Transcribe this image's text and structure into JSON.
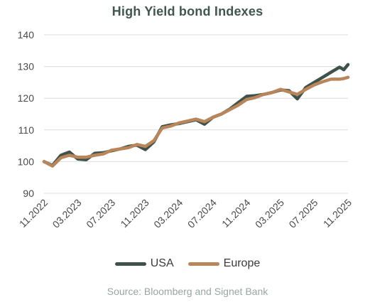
{
  "chart_data": {
    "type": "line",
    "title": "High Yield bond Indexes",
    "source": "Source: Bloomberg and Signet Bank",
    "ylim": [
      90,
      140
    ],
    "yticks": [
      90,
      100,
      110,
      120,
      130,
      140
    ],
    "xlim": [
      "2022-11",
      "2025-11"
    ],
    "xticks": [
      "11.2022",
      "03.2023",
      "07.2023",
      "11.2023",
      "03.2024",
      "07.2024",
      "11.2024",
      "03.2025",
      "07.2025",
      "11.2025"
    ],
    "grid": "horizontal",
    "legend_position": "bottom",
    "series": [
      {
        "name": "USA",
        "color": "#3f5249",
        "points": [
          [
            "2022-11",
            100
          ],
          [
            "2022-12",
            98.8
          ],
          [
            "2023-01",
            102
          ],
          [
            "2023-02",
            103
          ],
          [
            "2023-03",
            100.8
          ],
          [
            "2023-04",
            100.6
          ],
          [
            "2023-05",
            102.6
          ],
          [
            "2023-06",
            102.8
          ],
          [
            "2023-07",
            103.4
          ],
          [
            "2023-08",
            104
          ],
          [
            "2023-09",
            104.8
          ],
          [
            "2023-10",
            105.2
          ],
          [
            "2023-11",
            103.8
          ],
          [
            "2023-12",
            106.2
          ],
          [
            "2024-01",
            111
          ],
          [
            "2024-02",
            111.6
          ],
          [
            "2024-03",
            112
          ],
          [
            "2024-04",
            112.6
          ],
          [
            "2024-05",
            113.2
          ],
          [
            "2024-06",
            111.8
          ],
          [
            "2024-07",
            114
          ],
          [
            "2024-08",
            115
          ],
          [
            "2024-09",
            116.6
          ],
          [
            "2024-10",
            118.6
          ],
          [
            "2024-11",
            120.6
          ],
          [
            "2024-12",
            120.8
          ],
          [
            "2025-01",
            121.2
          ],
          [
            "2025-02",
            121.8
          ],
          [
            "2025-03",
            122.6
          ],
          [
            "2025-04",
            122.4
          ],
          [
            "2025-05",
            119.8
          ],
          [
            "2025-06",
            123.4
          ],
          [
            "2025-07",
            125
          ],
          [
            "2025-08",
            126.6
          ],
          [
            "2025-09",
            128.2
          ],
          [
            "2025-10",
            129.8
          ],
          [
            "2025-10.5",
            129
          ],
          [
            "2025-11",
            130.6
          ]
        ]
      },
      {
        "name": "Europe",
        "color": "#b8865a",
        "points": [
          [
            "2022-11",
            100
          ],
          [
            "2022-12",
            98.6
          ],
          [
            "2023-01",
            101.2
          ],
          [
            "2023-02",
            102
          ],
          [
            "2023-03",
            101.4
          ],
          [
            "2023-04",
            101.4
          ],
          [
            "2023-05",
            102
          ],
          [
            "2023-06",
            102.4
          ],
          [
            "2023-07",
            103.6
          ],
          [
            "2023-08",
            104
          ],
          [
            "2023-09",
            104.4
          ],
          [
            "2023-10",
            105.4
          ],
          [
            "2023-11",
            104.8
          ],
          [
            "2023-12",
            106.6
          ],
          [
            "2024-01",
            110.6
          ],
          [
            "2024-02",
            111.2
          ],
          [
            "2024-03",
            112.2
          ],
          [
            "2024-04",
            112.8
          ],
          [
            "2024-05",
            113.4
          ],
          [
            "2024-06",
            112.6
          ],
          [
            "2024-07",
            114
          ],
          [
            "2024-08",
            115
          ],
          [
            "2024-09",
            116.4
          ],
          [
            "2024-10",
            117.8
          ],
          [
            "2024-11",
            119.6
          ],
          [
            "2024-12",
            120.2
          ],
          [
            "2025-01",
            121.2
          ],
          [
            "2025-02",
            121.8
          ],
          [
            "2025-03",
            122.8
          ],
          [
            "2025-04",
            122
          ],
          [
            "2025-05",
            121.2
          ],
          [
            "2025-06",
            122.8
          ],
          [
            "2025-07",
            124.2
          ],
          [
            "2025-08",
            125.2
          ],
          [
            "2025-09",
            126
          ],
          [
            "2025-10",
            126
          ],
          [
            "2025-10.5",
            126.2
          ],
          [
            "2025-11",
            126.6
          ]
        ]
      }
    ]
  }
}
